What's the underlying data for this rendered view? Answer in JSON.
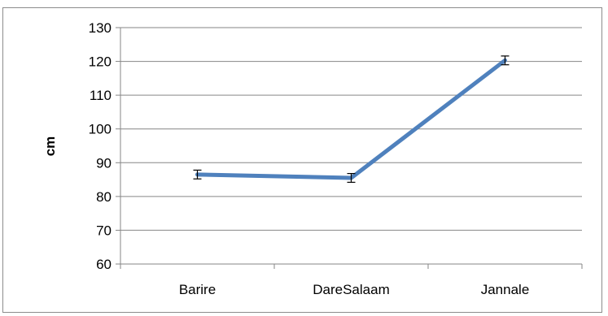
{
  "caption": "",
  "chart_data": {
    "type": "line",
    "title": "",
    "xlabel": "",
    "ylabel": "cm",
    "categories": [
      "Barire",
      "DareSalaam",
      "Jannale"
    ],
    "series": [
      {
        "name": "",
        "values": [
          86.5,
          85.5,
          120.3
        ],
        "error": [
          1.3,
          1.3,
          1.3
        ],
        "color": "#4f81bd"
      }
    ],
    "ylim": [
      60,
      130
    ],
    "yticks": [
      60,
      70,
      80,
      90,
      100,
      110,
      120,
      130
    ],
    "grid": "horizontal",
    "legend": "none"
  }
}
